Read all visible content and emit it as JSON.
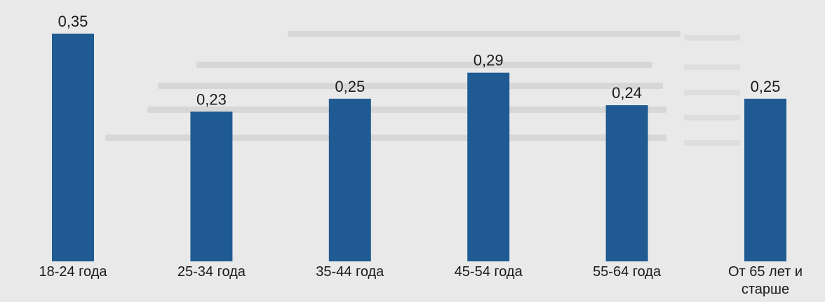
{
  "chart_data": {
    "type": "bar",
    "categories": [
      "18-24 года",
      "25-34 года",
      "35-44 года",
      "45-54 года",
      "55-64 года",
      "От 65 лет и старше"
    ],
    "category_lines": [
      [
        "18-24 года"
      ],
      [
        "25-34 года"
      ],
      [
        "35-44 года"
      ],
      [
        "45-54 года"
      ],
      [
        "55-64 года"
      ],
      [
        "От 65 лет и",
        "старше"
      ]
    ],
    "values": [
      0.35,
      0.23,
      0.25,
      0.29,
      0.24,
      0.25
    ],
    "value_labels": [
      "0,35",
      "0,23",
      "0,25",
      "0,29",
      "0,24",
      "0,25"
    ],
    "ylim": [
      0,
      0.35
    ],
    "bar_color": "#1f5b92",
    "title": "",
    "xlabel": "",
    "ylabel": "",
    "grid": false,
    "legend": "none"
  }
}
